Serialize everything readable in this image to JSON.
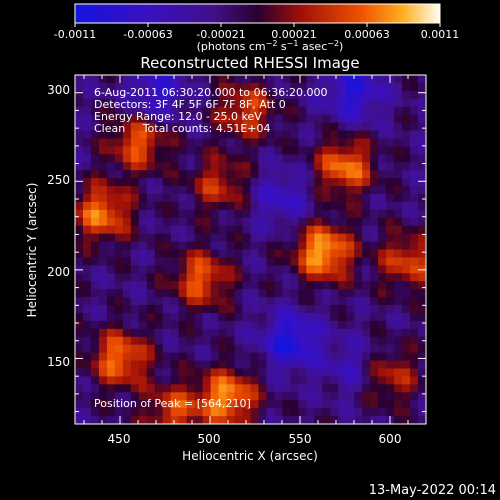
{
  "chart_data": {
    "type": "heatmap",
    "title": "Reconstructed RHESSI Image",
    "xlabel": "Heliocentric X (arcsec)",
    "ylabel": "Heliocentric Y (arcsec)",
    "xlim": [
      425,
      620
    ],
    "ylim": [
      113,
      310
    ],
    "x_ticks": [
      450,
      500,
      550,
      600
    ],
    "y_ticks": [
      150,
      200,
      250,
      300
    ],
    "colorbar": {
      "ticks": [
        "-0.0011",
        "-0.00063",
        "-0.00021",
        "0.00021",
        "0.00063",
        "0.0011"
      ],
      "range": [
        -0.0011,
        0.0011
      ],
      "unit_text": "(photons cm-2 s-1 asec-2)"
    },
    "annotations": {
      "time_range": "6-Aug-2011 06:30:20.000 to 06:36:20.000",
      "detectors": "Detectors: 3F 4F 5F 6F 7F 8F, Att 0",
      "energy": "Energy Range: 12.0 - 25.0 keV",
      "clean": "Clean     Total counts: 4.51E+04",
      "peak": "Position of Peak = [564,210]"
    },
    "hotspots": [
      {
        "x": 563,
        "y": 210,
        "value": 0.0011
      },
      {
        "x": 575,
        "y": 258,
        "value": 0.0009
      },
      {
        "x": 510,
        "y": 128,
        "value": 0.001
      },
      {
        "x": 440,
        "y": 232,
        "value": 0.0009
      },
      {
        "x": 460,
        "y": 272,
        "value": 0.0008
      },
      {
        "x": 450,
        "y": 150,
        "value": 0.0009
      },
      {
        "x": 495,
        "y": 195,
        "value": 0.0008
      },
      {
        "x": 505,
        "y": 248,
        "value": 0.0006
      },
      {
        "x": 610,
        "y": 205,
        "value": 0.0007
      },
      {
        "x": 600,
        "y": 140,
        "value": 0.0006
      },
      {
        "x": 520,
        "y": 290,
        "value": 0.0007
      },
      {
        "x": 480,
        "y": 120,
        "value": 0.0007
      }
    ],
    "coldspots": [
      {
        "x": 545,
        "y": 160,
        "value": -0.0008
      },
      {
        "x": 580,
        "y": 300,
        "value": -0.0007
      },
      {
        "x": 470,
        "y": 300,
        "value": -0.0006
      },
      {
        "x": 540,
        "y": 240,
        "value": -0.0005
      },
      {
        "x": 580,
        "y": 145,
        "value": -0.0004
      }
    ]
  },
  "footer": {
    "date": "13-May-2022 00:14"
  }
}
